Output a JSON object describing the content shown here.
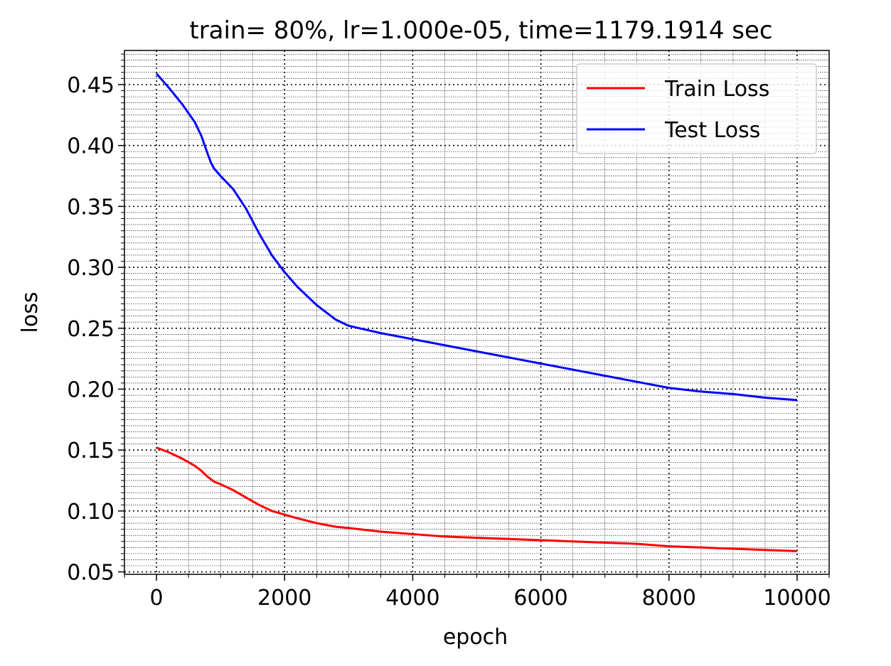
{
  "chart_data": {
    "type": "line",
    "title": "train= 80%, lr=1.000e-05, time=1179.1914 sec",
    "xlabel": "epoch",
    "ylabel": "loss",
    "xlim": [
      -500,
      10500
    ],
    "ylim": [
      0.048,
      0.478
    ],
    "x_ticks": [
      0,
      2000,
      4000,
      6000,
      8000,
      10000
    ],
    "y_ticks": [
      0.05,
      0.1,
      0.15,
      0.2,
      0.25,
      0.3,
      0.35,
      0.4,
      0.45
    ],
    "x_tick_labels": [
      "0",
      "2000",
      "4000",
      "6000",
      "8000",
      "10000"
    ],
    "y_tick_labels": [
      "0.05",
      "0.10",
      "0.15",
      "0.20",
      "0.25",
      "0.30",
      "0.35",
      "0.40",
      "0.45"
    ],
    "x_minor_step": 500,
    "y_minor_step": 0.005,
    "grid": true,
    "legend_position": "top-right",
    "series": [
      {
        "name": "Train Loss",
        "color": "#ff0000",
        "x": [
          0,
          200,
          400,
          600,
          700,
          800,
          900,
          1000,
          1200,
          1400,
          1600,
          1800,
          2000,
          2200,
          2500,
          2800,
          3000,
          3500,
          4000,
          4500,
          5000,
          5500,
          6000,
          6500,
          7000,
          7500,
          8000,
          8500,
          9000,
          9500,
          10000
        ],
        "values": [
          0.152,
          0.148,
          0.143,
          0.137,
          0.133,
          0.128,
          0.124,
          0.122,
          0.117,
          0.111,
          0.105,
          0.1,
          0.097,
          0.094,
          0.09,
          0.087,
          0.086,
          0.083,
          0.081,
          0.079,
          0.078,
          0.077,
          0.076,
          0.075,
          0.074,
          0.073,
          0.071,
          0.07,
          0.069,
          0.068,
          0.067
        ]
      },
      {
        "name": "Test Loss",
        "color": "#0000ff",
        "x": [
          0,
          200,
          400,
          600,
          700,
          800,
          850,
          900,
          1000,
          1200,
          1400,
          1600,
          1800,
          2000,
          2200,
          2500,
          2800,
          3000,
          3500,
          4000,
          4500,
          5000,
          5500,
          6000,
          6500,
          7000,
          7500,
          8000,
          8500,
          9000,
          9500,
          10000
        ],
        "values": [
          0.459,
          0.447,
          0.434,
          0.419,
          0.408,
          0.393,
          0.386,
          0.381,
          0.375,
          0.364,
          0.348,
          0.328,
          0.31,
          0.296,
          0.284,
          0.269,
          0.257,
          0.252,
          0.246,
          0.241,
          0.236,
          0.231,
          0.226,
          0.221,
          0.216,
          0.211,
          0.206,
          0.201,
          0.198,
          0.196,
          0.193,
          0.191
        ]
      }
    ]
  }
}
